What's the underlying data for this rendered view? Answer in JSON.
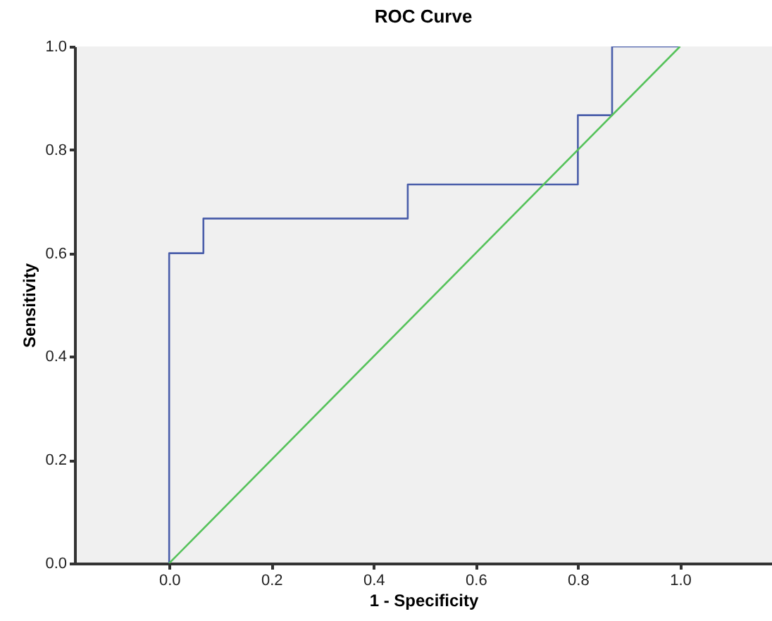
{
  "chart_data": {
    "type": "line",
    "title": "ROC Curve",
    "xlabel": "1 - Specificity",
    "ylabel": "Sensitivity",
    "xlim": [
      -0.185,
      1.18
    ],
    "ylim": [
      0,
      1
    ],
    "xticks": [
      {
        "value": 0,
        "label": "0.0"
      },
      0.2,
      0.4,
      0.6,
      0.8,
      {
        "value": 1,
        "label": "1.0"
      }
    ],
    "yticks": [
      {
        "value": 0,
        "label": "0.0"
      },
      0.2,
      0.4,
      0.6,
      0.8,
      {
        "value": 1,
        "label": "1.0"
      }
    ],
    "grid": false,
    "legend": false,
    "marker": "none",
    "line_style": "solid",
    "series": [
      {
        "color": "#4a5eaa",
        "x": [
          0,
          0,
          0.067,
          0.067,
          0.467,
          0.467,
          0.8,
          0.8,
          0.867,
          0.867,
          1
        ],
        "values": [
          0,
          0.6,
          0.6,
          0.667,
          0.667,
          0.733,
          0.733,
          0.867,
          0.867,
          1,
          1
        ]
      },
      {
        "color": "#55c25a",
        "x": [
          0,
          1
        ],
        "values": [
          0,
          1
        ]
      }
    ]
  }
}
